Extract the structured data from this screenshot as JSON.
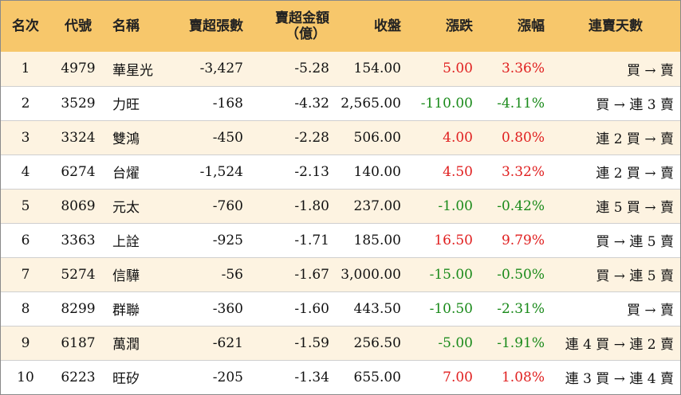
{
  "headers": {
    "rank": "名次",
    "code": "代號",
    "name": "名稱",
    "sell_lots": "賣超張數",
    "sell_amount_line1": "賣超金額",
    "sell_amount_line2": "（億）",
    "close": "收盤",
    "change": "漲跌",
    "change_pct": "漲幅",
    "consecutive": "連賣天數"
  },
  "colors": {
    "header_bg": "#f7c76b",
    "odd_row_bg": "#fdf3e1",
    "up": "#e02020",
    "down": "#1a8a1a"
  },
  "rows": [
    {
      "rank": "1",
      "code": "4979",
      "name": "華星光",
      "sell_lots": "-3,427",
      "sell_amount": "-5.28",
      "close": "154.00",
      "change": "5.00",
      "change_pct": "3.36%",
      "direction": "up",
      "consecutive": "買 → 賣"
    },
    {
      "rank": "2",
      "code": "3529",
      "name": "力旺",
      "sell_lots": "-168",
      "sell_amount": "-4.32",
      "close": "2,565.00",
      "change": "-110.00",
      "change_pct": "-4.11%",
      "direction": "down",
      "consecutive": "買 → 連 3 賣"
    },
    {
      "rank": "3",
      "code": "3324",
      "name": "雙鴻",
      "sell_lots": "-450",
      "sell_amount": "-2.28",
      "close": "506.00",
      "change": "4.00",
      "change_pct": "0.80%",
      "direction": "up",
      "consecutive": "連 2 買 → 賣"
    },
    {
      "rank": "4",
      "code": "6274",
      "name": "台燿",
      "sell_lots": "-1,524",
      "sell_amount": "-2.13",
      "close": "140.00",
      "change": "4.50",
      "change_pct": "3.32%",
      "direction": "up",
      "consecutive": "連 2 買 → 賣"
    },
    {
      "rank": "5",
      "code": "8069",
      "name": "元太",
      "sell_lots": "-760",
      "sell_amount": "-1.80",
      "close": "237.00",
      "change": "-1.00",
      "change_pct": "-0.42%",
      "direction": "down",
      "consecutive": "連 5 買 → 賣"
    },
    {
      "rank": "6",
      "code": "3363",
      "name": "上詮",
      "sell_lots": "-925",
      "sell_amount": "-1.71",
      "close": "185.00",
      "change": "16.50",
      "change_pct": "9.79%",
      "direction": "up",
      "consecutive": "買 → 連 5 賣"
    },
    {
      "rank": "7",
      "code": "5274",
      "name": "信驊",
      "sell_lots": "-56",
      "sell_amount": "-1.67",
      "close": "3,000.00",
      "change": "-15.00",
      "change_pct": "-0.50%",
      "direction": "down",
      "consecutive": "買 → 連 5 賣"
    },
    {
      "rank": "8",
      "code": "8299",
      "name": "群聯",
      "sell_lots": "-360",
      "sell_amount": "-1.60",
      "close": "443.50",
      "change": "-10.50",
      "change_pct": "-2.31%",
      "direction": "down",
      "consecutive": "買 → 賣"
    },
    {
      "rank": "9",
      "code": "6187",
      "name": "萬潤",
      "sell_lots": "-621",
      "sell_amount": "-1.59",
      "close": "256.50",
      "change": "-5.00",
      "change_pct": "-1.91%",
      "direction": "down",
      "consecutive": "連 4 買 → 連 2 賣"
    },
    {
      "rank": "10",
      "code": "6223",
      "name": "旺矽",
      "sell_lots": "-205",
      "sell_amount": "-1.34",
      "close": "655.00",
      "change": "7.00",
      "change_pct": "1.08%",
      "direction": "up",
      "consecutive": "連 3 買 → 連 4 賣"
    }
  ]
}
